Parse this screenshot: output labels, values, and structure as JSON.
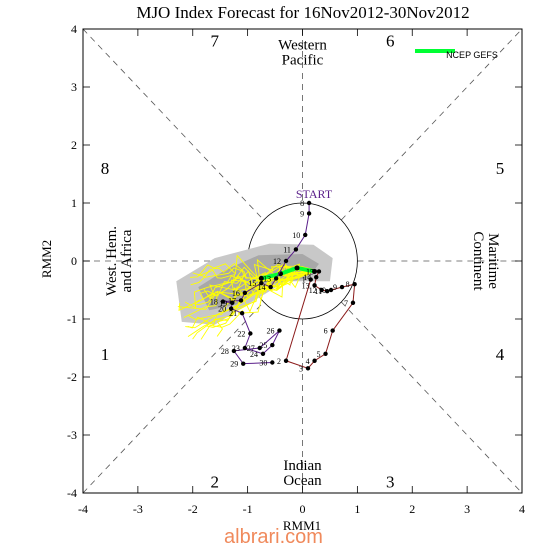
{
  "chart_data": {
    "type": "scatter",
    "title": "MJO Index Forecast for 16Nov2012-30Nov2012",
    "xlabel": "RMM1",
    "ylabel": "RMM2",
    "xlim": [
      -4,
      4
    ],
    "ylim": [
      -4,
      4
    ],
    "xticks": [
      "-4",
      "-3",
      "-2",
      "-1",
      "0",
      "1",
      "2",
      "3",
      "4"
    ],
    "yticks": [
      "-4",
      "-3",
      "-2",
      "-1",
      "0",
      "1",
      "2",
      "3",
      "4"
    ],
    "grid": false,
    "legend_position": "top-right",
    "legend": [
      {
        "name": "NCEP GEFS",
        "color": "#00ff33"
      }
    ],
    "phases": [
      {
        "label": "1",
        "x": -3.6,
        "y": -1.6
      },
      {
        "label": "2",
        "x": -1.6,
        "y": -3.8
      },
      {
        "label": "3",
        "x": 1.6,
        "y": -3.8
      },
      {
        "label": "4",
        "x": 3.6,
        "y": -1.6
      },
      {
        "label": "5",
        "x": 3.6,
        "y": 1.6
      },
      {
        "label": "6",
        "x": 1.6,
        "y": 3.8
      },
      {
        "label": "7",
        "x": -1.6,
        "y": 3.8
      },
      {
        "label": "8",
        "x": -3.6,
        "y": 1.6
      }
    ],
    "regions": [
      {
        "lines": [
          "Western",
          "Pacific"
        ],
        "x": 0,
        "y": 3.6,
        "rotate": 0
      },
      {
        "lines": [
          "Indian",
          "Ocean"
        ],
        "x": 0,
        "y": -3.65,
        "rotate": 0
      },
      {
        "lines": [
          "West. Hem.",
          "and Africa"
        ],
        "x": -3.35,
        "y": 0,
        "rotate": -90
      },
      {
        "lines": [
          "Maritime",
          "Continent"
        ],
        "x": 3.35,
        "y": 0,
        "rotate": 90
      }
    ],
    "start_label": "START",
    "observed": {
      "color": "#5a1f8a",
      "points": [
        {
          "label": "8",
          "x": 0.12,
          "y": 1.0
        },
        {
          "label": "9",
          "x": 0.12,
          "y": 0.82
        },
        {
          "label": "10",
          "x": 0.05,
          "y": 0.45
        },
        {
          "label": "11",
          "x": -0.12,
          "y": 0.2
        },
        {
          "label": "12",
          "x": -0.3,
          "y": 0.0
        },
        {
          "label": "13",
          "x": -0.48,
          "y": -0.3
        },
        {
          "label": "14",
          "x": -0.58,
          "y": -0.45
        },
        {
          "label": "15",
          "x": -0.75,
          "y": -0.38
        },
        {
          "label": "16",
          "x": -1.05,
          "y": -0.55
        },
        {
          "label": "17",
          "x": -1.12,
          "y": -0.68
        },
        {
          "label": "18",
          "x": -1.45,
          "y": -0.7
        },
        {
          "label": "19",
          "x": -1.28,
          "y": -0.72
        },
        {
          "label": "20",
          "x": -1.3,
          "y": -0.82
        },
        {
          "label": "21",
          "x": -1.1,
          "y": -0.9
        },
        {
          "label": "22",
          "x": -0.95,
          "y": -1.25
        },
        {
          "label": "23",
          "x": -1.05,
          "y": -1.5
        },
        {
          "label": "24",
          "x": -0.72,
          "y": -1.6
        },
        {
          "label": "25",
          "x": -0.55,
          "y": -1.45
        },
        {
          "label": "26",
          "x": -0.42,
          "y": -1.2
        },
        {
          "label": "27",
          "x": -0.78,
          "y": -1.5
        },
        {
          "label": "28",
          "x": -1.25,
          "y": -1.55
        },
        {
          "label": "29",
          "x": -1.08,
          "y": -1.77
        },
        {
          "label": "30",
          "x": -0.55,
          "y": -1.75
        }
      ]
    },
    "forecast_obs": {
      "color": "#8b1a1a",
      "points": [
        {
          "label": "1",
          "x": 0.15,
          "y": -0.32
        },
        {
          "label": "2",
          "x": -0.3,
          "y": -1.72
        },
        {
          "label": "3",
          "x": 0.1,
          "y": -1.85
        },
        {
          "label": "4",
          "x": 0.22,
          "y": -1.72
        },
        {
          "label": "5",
          "x": 0.42,
          "y": -1.6
        },
        {
          "label": "6",
          "x": 0.55,
          "y": -1.2
        },
        {
          "label": "7",
          "x": 0.92,
          "y": -0.72
        },
        {
          "label": "8",
          "x": 0.95,
          "y": -0.4
        },
        {
          "label": "9",
          "x": 0.72,
          "y": -0.45
        },
        {
          "label": "10",
          "x": 0.52,
          "y": -0.5
        },
        {
          "label": "11",
          "x": 0.45,
          "y": -0.52
        },
        {
          "label": "12",
          "x": 0.35,
          "y": -0.5
        },
        {
          "label": "13",
          "x": 0.22,
          "y": -0.42
        },
        {
          "label": "14",
          "x": 0.25,
          "y": -0.28
        },
        {
          "label": "15",
          "x": 0.3,
          "y": -0.18
        }
      ]
    },
    "ensemble_mean": {
      "color": "#00ff33",
      "points": [
        {
          "x": 0.22,
          "y": -0.18
        },
        {
          "x": -0.1,
          "y": -0.12
        },
        {
          "x": -0.4,
          "y": -0.22
        },
        {
          "x": -0.75,
          "y": -0.3
        }
      ]
    },
    "ensemble_members": {
      "color": "#ffff00",
      "count": 20
    },
    "uncertainty_shading": {
      "colors": [
        "#a8a8a8",
        "#c8c8c8"
      ]
    }
  }
}
